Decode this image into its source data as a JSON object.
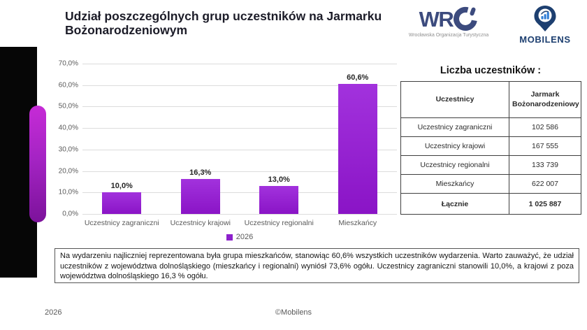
{
  "slide": {
    "title": "Udział poszczególnych grup uczestników na Jarmarku Bożonarodzeniowym",
    "footer_year": "2026",
    "footer_credit": "©Mobilens"
  },
  "logos": {
    "wro": {
      "text": "WR",
      "tagline": "Wrocławska Organizacja Turystyczna"
    },
    "mobilens": {
      "text": "MOBILENS"
    }
  },
  "chart_data": {
    "type": "bar",
    "title": "",
    "categories": [
      "Uczestnicy zagraniczni",
      "Uczestnicy krajowi",
      "Uczestnicy regionalni",
      "Mieszkańcy"
    ],
    "series": [
      {
        "name": "2026",
        "values": [
          10.0,
          16.3,
          13.0,
          60.6
        ]
      }
    ],
    "value_labels": [
      "10,0%",
      "16,3%",
      "13,0%",
      "60,6%"
    ],
    "y_ticks": [
      "70,0%",
      "60,0%",
      "50,0%",
      "40,0%",
      "30,0%",
      "20,0%",
      "10,0%",
      "0,0%"
    ],
    "ylim": [
      0,
      70
    ],
    "grid": true,
    "legend_position": "bottom",
    "legend_label": "2026"
  },
  "table": {
    "title": "Liczba uczestników :",
    "columns": [
      "Uczestnicy",
      "Jarmark Bożonarodzeniowy"
    ],
    "rows": [
      [
        "Uczestnicy zagraniczni",
        "102 586"
      ],
      [
        "Uczestnicy krajowi",
        "167 555"
      ],
      [
        "Uczestnicy regionalni",
        "133 739"
      ],
      [
        "Mieszkańcy",
        "622 007"
      ]
    ],
    "total_row": [
      "Łącznie",
      "1 025 887"
    ]
  },
  "summary": {
    "text": "Na wydarzeniu najliczniej reprezentowana była grupa mieszkańców, stanowiąc 60,6% wszystkich uczestników wydarzenia. Warto zauważyć, że udział uczestników z województwa dolnośląskiego (mieszkańcy i regionalni) wyniósł 73,6% ogółu. Uczestnicy zagraniczni stanowili 10,0%, a krajowi z poza województwa dolnośląskiego 16,3 % ogółu."
  },
  "colors": {
    "bar_top": "#a232dd",
    "bar_bottom": "#8a14c6",
    "legend_swatch": "#8d21cc",
    "pill_top": "#c62bd6",
    "pill_bottom": "#7c129b",
    "navy": "#3c4b7e",
    "mobilens_navy": "#1d3f70",
    "mobilens_blue": "#2e7cd6"
  }
}
